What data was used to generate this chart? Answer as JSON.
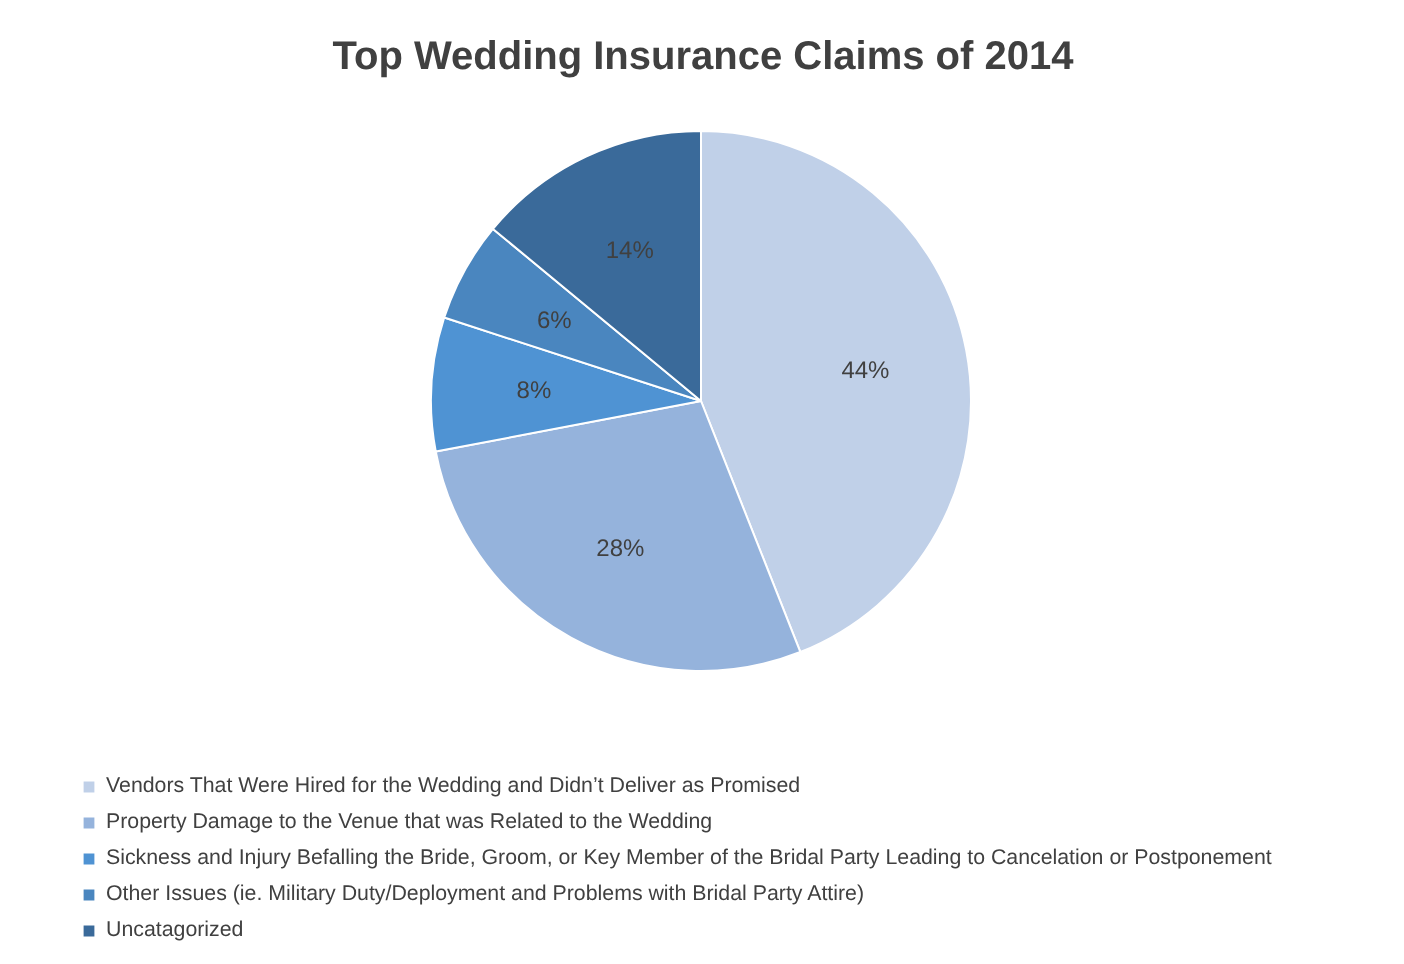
{
  "chart_data": {
    "type": "pie",
    "title": "Top Wedding Insurance Claims of 2014",
    "categories": [
      "Vendors That Were Hired for the Wedding and Didn’t Deliver as Promised",
      "Property Damage to the Venue that was Related to the Wedding",
      "Sickness and Injury Befalling the Bride, Groom, or Key Member of the Bridal Party Leading to Cancelation or Postponement",
      "Other Issues (ie. Military Duty/Deployment and Problems with Bridal Party Attire)",
      "Uncatagorized"
    ],
    "values": [
      44,
      28,
      8,
      6,
      14
    ],
    "colors": [
      "#c0d0e8",
      "#95b3dc",
      "#4f93d3",
      "#4a86bf",
      "#3a6a9a"
    ],
    "value_labels": [
      "44%",
      "28%",
      "8%",
      "6%",
      "14%"
    ],
    "legend": "bottom"
  }
}
